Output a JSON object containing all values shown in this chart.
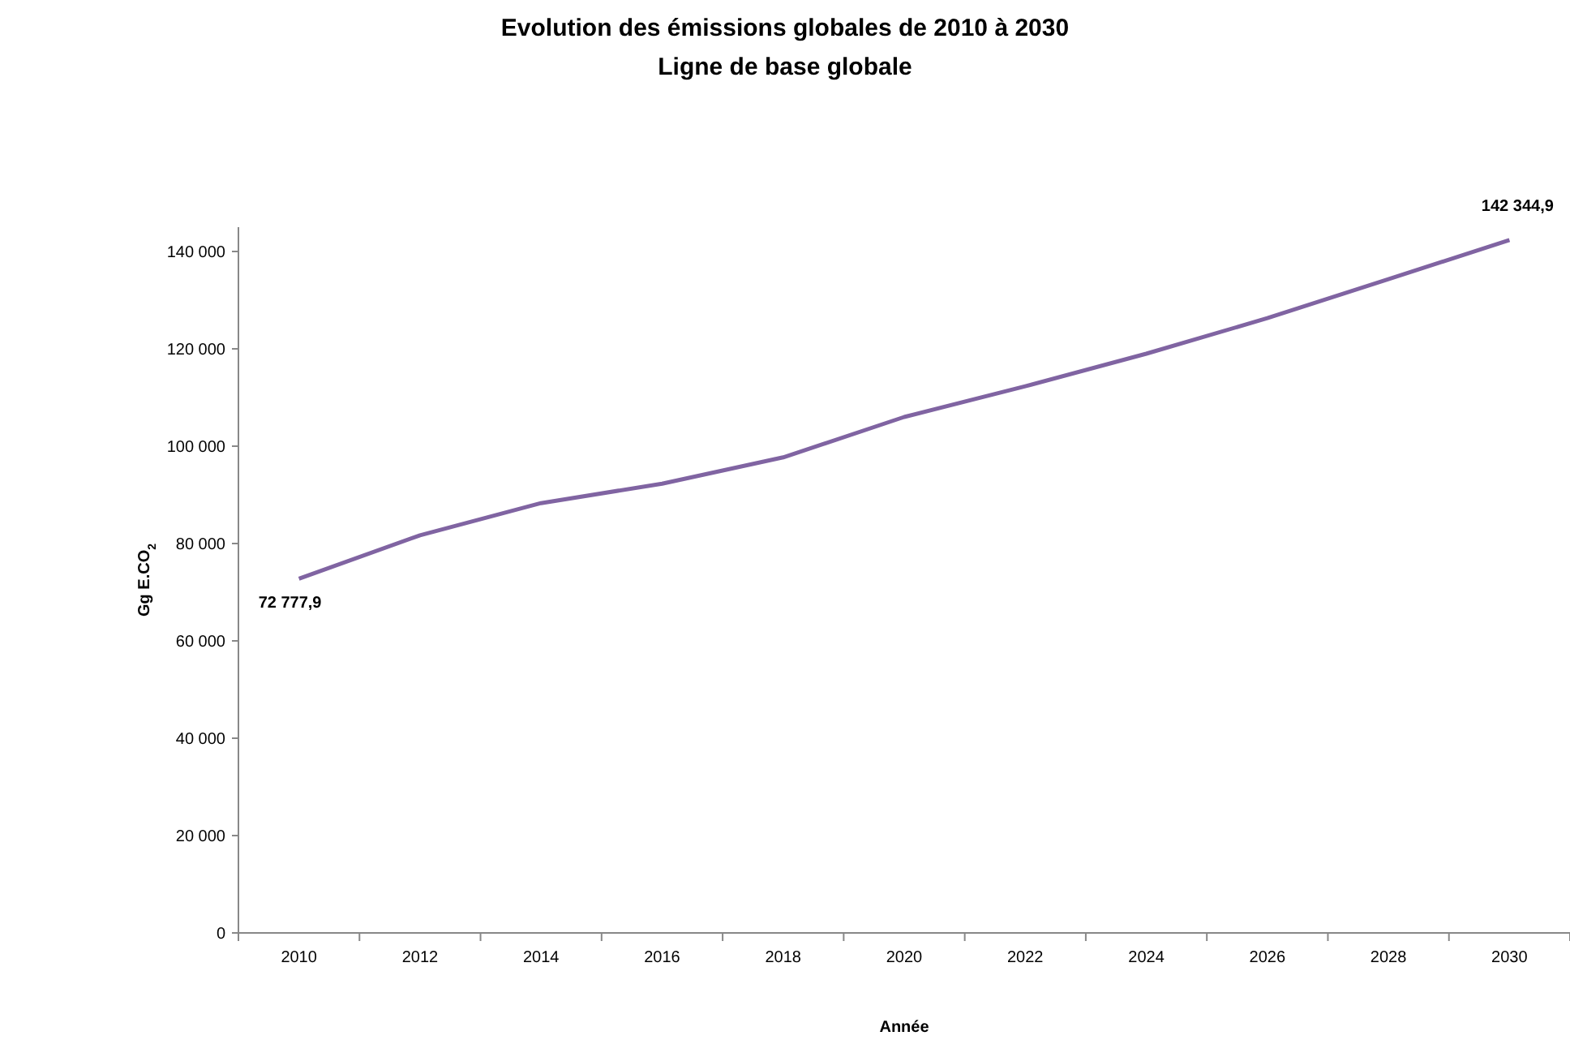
{
  "chart_data": {
    "type": "line",
    "title": "Evolution des émissions globales de 2010 à 2030",
    "subtitle": "Ligne de base globale",
    "xlabel": "Année",
    "ylabel": "Gg E.CO$_{2}$",
    "categories": [
      "2010",
      "2012",
      "2014",
      "2016",
      "2018",
      "2020",
      "2022",
      "2024",
      "2026",
      "2028",
      "2030"
    ],
    "series": [
      {
        "color": "#8064a2",
        "values": [
          72777.9,
          81700,
          88300,
          92300,
          97700,
          106000,
          112300,
          119000,
          126300,
          134300,
          142344.9
        ],
        "value_labels": [
          "72 777,9",
          null,
          null,
          null,
          null,
          null,
          null,
          null,
          null,
          null,
          "142 344,9"
        ]
      }
    ],
    "ylim": [
      0,
      145000
    ],
    "yticks": [
      0,
      {
        "value": 20000,
        "label": "20 000"
      },
      {
        "value": 40000,
        "label": "40 000"
      },
      {
        "value": 60000,
        "label": "60 000"
      },
      {
        "value": 80000,
        "label": "80 000"
      },
      {
        "value": 100000,
        "label": "100 000"
      },
      {
        "value": 120000,
        "label": "120 000"
      },
      {
        "value": 140000,
        "label": "140 000"
      }
    ],
    "grid": false,
    "marker": "none",
    "line_style": "solid"
  }
}
